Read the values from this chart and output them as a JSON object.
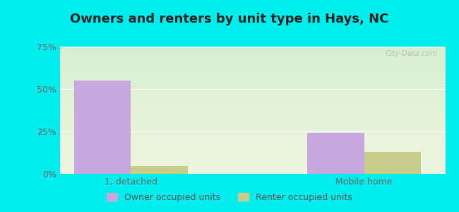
{
  "title": "Owners and renters by unit type in Hays, NC",
  "categories": [
    "1, detached",
    "Mobile home"
  ],
  "owner_values": [
    55.0,
    24.0
  ],
  "renter_values": [
    4.5,
    13.0
  ],
  "owner_color": "#c9a8e0",
  "renter_color": "#c8cd8a",
  "ylim": [
    0,
    75
  ],
  "yticks": [
    0,
    25,
    50,
    75
  ],
  "ytick_labels": [
    "0%",
    "25%",
    "50%",
    "75%"
  ],
  "bar_width": 0.28,
  "group_positions": [
    0.55,
    1.7
  ],
  "xlim": [
    0.2,
    2.1
  ],
  "bg_top_color": "#d8f0d0",
  "bg_bottom_color": "#eef5e0",
  "outer_background": "#00eeee",
  "watermark": "City-Data.com",
  "legend_labels": [
    "Owner occupied units",
    "Renter occupied units"
  ],
  "title_fontsize": 13,
  "tick_fontsize": 9,
  "legend_fontsize": 9
}
